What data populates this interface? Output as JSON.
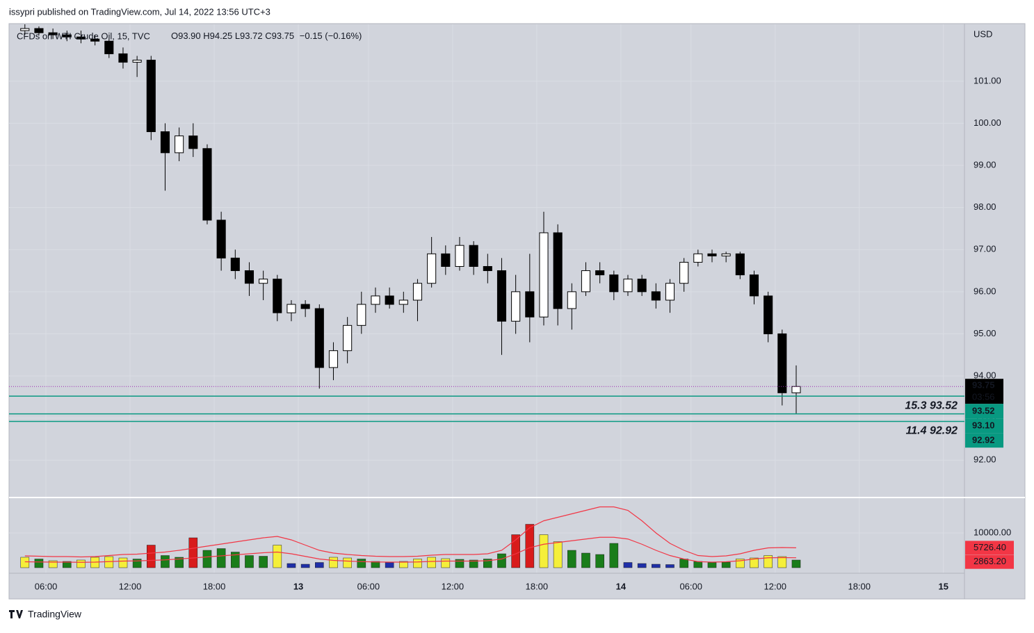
{
  "header": {
    "published": "issypri published on TradingView.com, Jul 14, 2022 13:56 UTC+3",
    "brand": "TradingView"
  },
  "chart_data": {
    "type": "candlestick",
    "legend": {
      "symbol": "CFDs on WTI Crude Oil, 15, TVC",
      "ohlc": [
        "O93.90",
        "H94.25",
        "L93.72",
        "C93.75"
      ],
      "change": "−0.15 (−0.16%)"
    },
    "currency": "USD",
    "x": [
      4.5,
      5.5,
      6.5,
      7.5,
      8.5,
      9.5,
      10.5,
      11.5,
      12.5,
      13.5,
      14.5,
      15.5,
      16.5,
      17.5,
      18.5,
      19.5,
      20.5,
      21.5,
      22.5,
      23.5,
      24.5,
      25.5,
      26.5,
      27.5,
      28.5,
      29.5,
      30.5,
      31.5,
      32.5,
      33.5,
      34.5,
      35.5,
      36.5,
      37.5,
      38.5,
      39.5,
      40.5,
      41.5,
      42.5,
      43.5,
      44.5,
      45.5,
      46.5,
      47.5,
      48.5,
      49.5,
      50.5,
      51.5,
      52.5,
      53.5,
      54.5,
      55.5,
      56.5,
      57.5,
      58.5,
      59.5
    ],
    "open": [
      102.2,
      102.25,
      102.15,
      102.1,
      102.05,
      102.0,
      101.95,
      101.65,
      101.45,
      101.5,
      99.8,
      99.3,
      99.7,
      99.4,
      97.7,
      96.8,
      96.5,
      96.2,
      96.3,
      95.5,
      95.7,
      95.6,
      94.2,
      94.6,
      95.2,
      95.7,
      95.9,
      95.7,
      95.8,
      96.2,
      96.9,
      96.6,
      97.1,
      96.6,
      96.5,
      95.3,
      96.0,
      95.4,
      97.4,
      95.6,
      96.0,
      96.5,
      96.4,
      96.0,
      96.3,
      96.0,
      95.8,
      96.2,
      96.7,
      96.9,
      96.85,
      96.9,
      96.4,
      95.9,
      95.0,
      93.6
    ],
    "high": [
      102.35,
      102.3,
      102.25,
      102.2,
      102.2,
      102.1,
      102.0,
      101.8,
      101.6,
      101.6,
      100.0,
      99.9,
      100.0,
      99.5,
      97.9,
      97.0,
      96.7,
      96.5,
      96.4,
      95.8,
      95.8,
      95.7,
      94.8,
      95.4,
      96.0,
      96.1,
      96.1,
      96.0,
      96.3,
      97.3,
      97.1,
      97.3,
      97.2,
      96.9,
      96.8,
      96.4,
      96.9,
      97.9,
      97.6,
      96.2,
      96.7,
      96.7,
      96.5,
      96.4,
      96.4,
      96.2,
      96.3,
      96.8,
      97.0,
      97.0,
      96.95,
      96.95,
      96.5,
      96.0,
      95.1,
      94.25
    ],
    "low": [
      102.1,
      102.1,
      102.0,
      101.95,
      101.9,
      101.85,
      101.55,
      101.3,
      101.1,
      99.6,
      98.4,
      99.1,
      99.2,
      97.6,
      96.5,
      96.3,
      95.9,
      95.8,
      95.3,
      95.3,
      95.4,
      93.7,
      93.9,
      94.3,
      95.0,
      95.5,
      95.6,
      95.5,
      95.3,
      96.1,
      96.4,
      96.5,
      96.4,
      96.2,
      94.5,
      95.0,
      94.8,
      95.2,
      95.2,
      95.1,
      95.9,
      96.2,
      95.8,
      95.9,
      95.9,
      95.6,
      95.5,
      96.0,
      96.6,
      96.7,
      96.7,
      96.3,
      95.7,
      94.8,
      93.3,
      93.1
    ],
    "close": [
      102.25,
      102.15,
      102.1,
      102.05,
      102.0,
      101.95,
      101.65,
      101.45,
      101.5,
      99.8,
      99.3,
      99.7,
      99.4,
      97.7,
      96.8,
      96.5,
      96.2,
      96.3,
      95.5,
      95.7,
      95.6,
      94.2,
      94.6,
      95.2,
      95.7,
      95.9,
      95.7,
      95.8,
      96.2,
      96.9,
      96.6,
      97.1,
      96.6,
      96.5,
      95.3,
      96.0,
      95.4,
      97.4,
      95.6,
      96.0,
      96.5,
      96.4,
      96.0,
      96.3,
      96.0,
      95.8,
      96.2,
      96.7,
      96.9,
      96.85,
      96.9,
      96.4,
      95.9,
      95.0,
      93.6,
      93.75
    ],
    "xlim": [
      3.37,
      71.5
    ],
    "xticks": [
      {
        "value": 6,
        "label": "06:00"
      },
      {
        "value": 12,
        "label": "12:00"
      },
      {
        "value": 18,
        "label": "18:00"
      },
      {
        "value": 24,
        "label": "13"
      },
      {
        "value": 29,
        "label": "06:00"
      },
      {
        "value": 35,
        "label": "12:00"
      },
      {
        "value": 41,
        "label": "18:00"
      },
      {
        "value": 47,
        "label": "14"
      },
      {
        "value": 52,
        "label": "06:00"
      },
      {
        "value": 58,
        "label": "12:00"
      },
      {
        "value": 64,
        "label": "18:00"
      },
      {
        "value": 70,
        "label": "15"
      }
    ],
    "ylim": [
      91.13,
      102.35
    ],
    "yticks": [
      {
        "value": 92,
        "label": "92.00"
      },
      {
        "value": 93,
        "label": "93.00"
      },
      {
        "value": 94,
        "label": "94.00"
      },
      {
        "value": 95,
        "label": "95.00"
      },
      {
        "value": 96,
        "label": "96.00"
      },
      {
        "value": 97,
        "label": "97.00"
      },
      {
        "value": 98,
        "label": "98.00"
      },
      {
        "value": 99,
        "label": "99.00"
      },
      {
        "value": 100,
        "label": "100.00"
      },
      {
        "value": 101,
        "label": "101.00"
      }
    ],
    "grid": true,
    "last_price": {
      "value": 93.75,
      "label": "93.75",
      "countdown": "03:56"
    },
    "levels": [
      {
        "value": 93.52,
        "label": "93.52",
        "note": "15.3 93.52"
      },
      {
        "value": 93.1,
        "label": "93.10"
      },
      {
        "value": 92.92,
        "label": "92.92",
        "note": "11.4 92.92"
      }
    ],
    "level_color": "#089981",
    "note_color": "#2962ff",
    "volume": {
      "values": [
        3000,
        2500,
        2000,
        1800,
        2200,
        3000,
        3200,
        2800,
        2500,
        6500,
        3500,
        3000,
        8600,
        5000,
        5500,
        4500,
        3500,
        3300,
        6500,
        1200,
        1000,
        1500,
        3000,
        2800,
        2500,
        1800,
        1500,
        1800,
        2500,
        3000,
        2600,
        2400,
        2200,
        2500,
        4000,
        9500,
        12500,
        9500,
        7500,
        5000,
        4200,
        3800,
        7000,
        1500,
        1200,
        1000,
        900,
        2500,
        1800,
        1500,
        1600,
        2500,
        2800,
        3500,
        3200,
        2200
      ],
      "colors": [
        "#f5ef3a",
        "#1a7d1a",
        "#f5ef3a",
        "#1a7d1a",
        "#f5ef3a",
        "#f5ef3a",
        "#f5ef3a",
        "#f5ef3a",
        "#1a7d1a",
        "#d81b1b",
        "#1a7d1a",
        "#1a7d1a",
        "#d81b1b",
        "#1a7d1a",
        "#1a7d1a",
        "#1a7d1a",
        "#1a7d1a",
        "#1a7d1a",
        "#f5ef3a",
        "#1f2fa8",
        "#1f2fa8",
        "#1f2fa8",
        "#f5ef3a",
        "#f5ef3a",
        "#1a7d1a",
        "#1a7d1a",
        "#1f2fa8",
        "#f5ef3a",
        "#f5ef3a",
        "#f5ef3a",
        "#f5ef3a",
        "#1a7d1a",
        "#1a7d1a",
        "#1a7d1a",
        "#1a7d1a",
        "#d81b1b",
        "#d81b1b",
        "#f5ef3a",
        "#f5ef3a",
        "#1a7d1a",
        "#1a7d1a",
        "#1a7d1a",
        "#1a7d1a",
        "#1f2fa8",
        "#1f2fa8",
        "#1f2fa8",
        "#1f2fa8",
        "#1a7d1a",
        "#1a7d1a",
        "#1a7d1a",
        "#1a7d1a",
        "#f5ef3a",
        "#f5ef3a",
        "#f5ef3a",
        "#f5ef3a",
        "#1a7d1a"
      ],
      "ylim": [
        0,
        19800
      ],
      "yticks": [
        {
          "value": 10000,
          "label": "10000.00"
        }
      ],
      "ma": [
        {
          "color": "#f23645",
          "label": "5726.40",
          "values": [
            3400,
            3300,
            3200,
            3200,
            3100,
            3200,
            3500,
            3800,
            3900,
            4200,
            4500,
            5000,
            5600,
            6200,
            6800,
            7400,
            8000,
            8600,
            9000,
            8000,
            6500,
            5000,
            4200,
            3800,
            3500,
            3300,
            3200,
            3200,
            3300,
            3600,
            3800,
            3800,
            3800,
            4000,
            5000,
            8000,
            11500,
            13500,
            14500,
            15500,
            16500,
            17500,
            17500,
            16500,
            13500,
            10000,
            7000,
            5000,
            3500,
            3200,
            3400,
            4000,
            5000,
            5700,
            5800,
            5726.4
          ]
        },
        {
          "color": "#f23645",
          "label": "2863.20",
          "values": [
            1700,
            1650,
            1600,
            1600,
            1550,
            1600,
            1750,
            1900,
            1950,
            2100,
            2250,
            2500,
            2800,
            3100,
            3400,
            3700,
            4000,
            4300,
            4500,
            4000,
            3250,
            2500,
            2100,
            1900,
            1750,
            1650,
            1600,
            1600,
            1650,
            1800,
            1900,
            1900,
            1900,
            2000,
            2500,
            4000,
            5750,
            6750,
            7250,
            7750,
            8250,
            8750,
            8750,
            8250,
            6750,
            5000,
            3500,
            2500,
            1750,
            1600,
            1700,
            2000,
            2500,
            2850,
            2900,
            2863.2
          ]
        }
      ]
    }
  }
}
